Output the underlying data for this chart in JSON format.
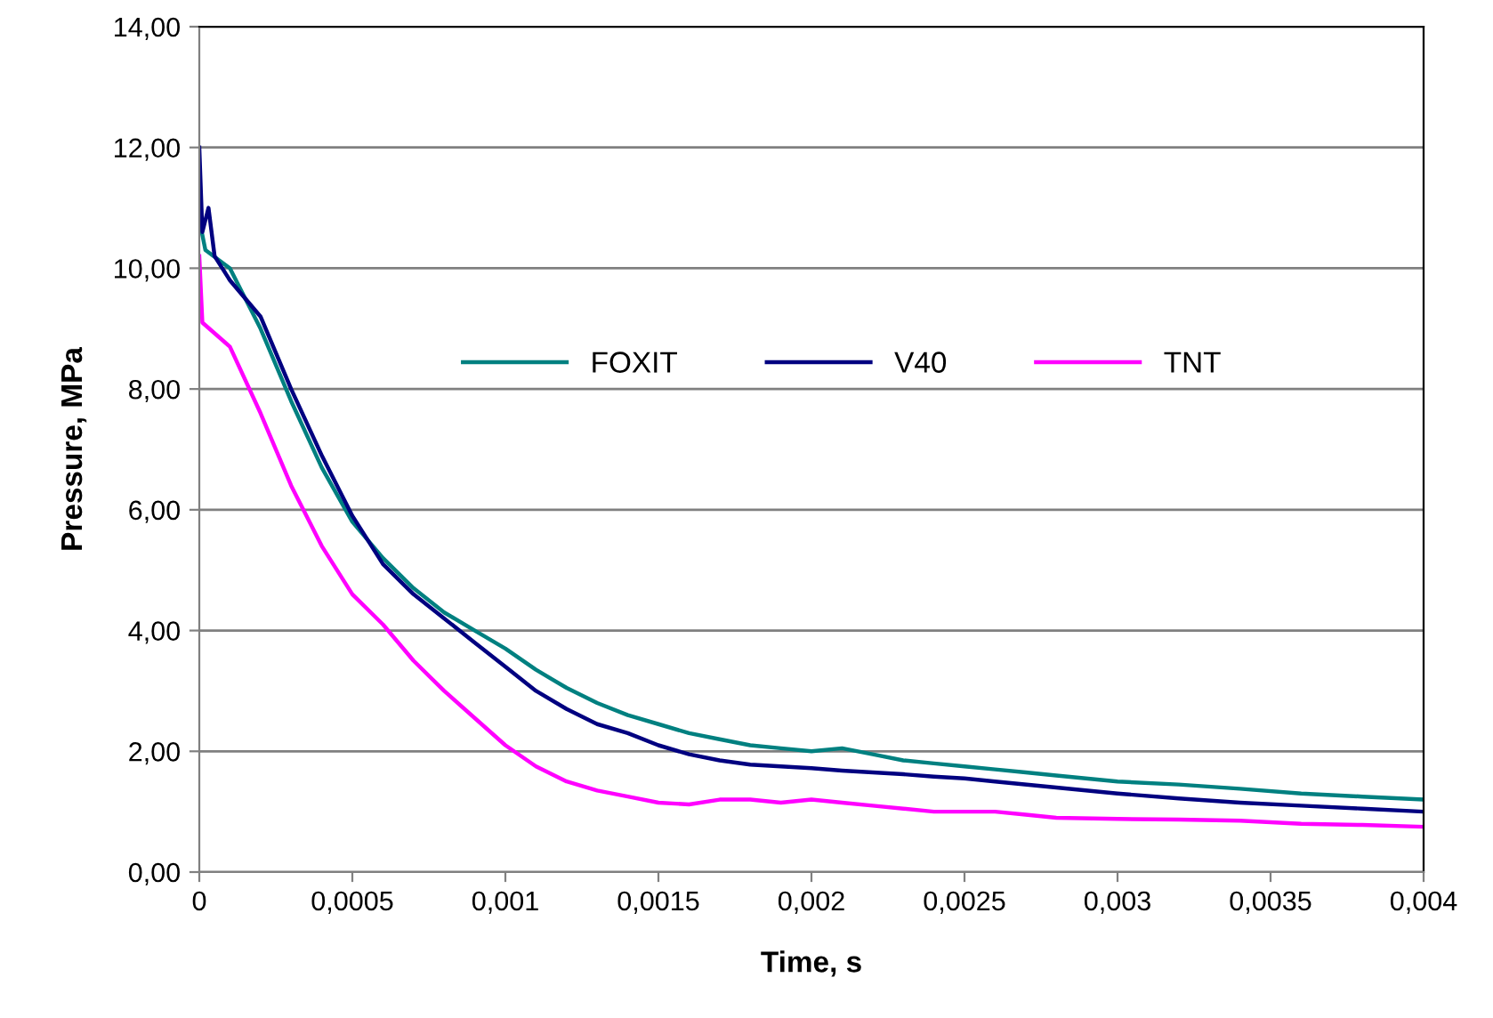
{
  "chart_data": {
    "type": "line",
    "xlabel": "Time, s",
    "ylabel": "Pressure, MPa",
    "xlim": [
      0,
      0.004
    ],
    "ylim": [
      0,
      14
    ],
    "xticks": [
      {
        "value": 0,
        "label": "0"
      },
      {
        "value": 0.0005,
        "label": "0,0005"
      },
      {
        "value": 0.001,
        "label": "0,001"
      },
      {
        "value": 0.0015,
        "label": "0,0015"
      },
      {
        "value": 0.002,
        "label": "0,002"
      },
      {
        "value": 0.0025,
        "label": "0,0025"
      },
      {
        "value": 0.003,
        "label": "0,003"
      },
      {
        "value": 0.0035,
        "label": "0,0035"
      },
      {
        "value": 0.004,
        "label": "0,004"
      }
    ],
    "yticks": [
      {
        "value": 0,
        "label": "0,00"
      },
      {
        "value": 2,
        "label": "2,00"
      },
      {
        "value": 4,
        "label": "4,00"
      },
      {
        "value": 6,
        "label": "6,00"
      },
      {
        "value": 8,
        "label": "8,00"
      },
      {
        "value": 10,
        "label": "10,00"
      },
      {
        "value": 12,
        "label": "12,00"
      },
      {
        "value": 14,
        "label": "14,00"
      }
    ],
    "grid": "y",
    "legend": "center",
    "marker": "none",
    "line_style": "solid",
    "series": [
      {
        "name": "FOXIT",
        "color": "#008080",
        "x": [
          0,
          2e-05,
          0.0001,
          0.0002,
          0.0003,
          0.0004,
          0.0005,
          0.0006,
          0.0007,
          0.0008,
          0.0009,
          0.001,
          0.0011,
          0.0012,
          0.0013,
          0.0014,
          0.0015,
          0.0016,
          0.0017,
          0.0018,
          0.0019,
          0.002,
          0.0021,
          0.0022,
          0.0023,
          0.0024,
          0.0025,
          0.0026,
          0.0027,
          0.0028,
          0.003,
          0.0032,
          0.0034,
          0.0036,
          0.0038,
          0.004
        ],
        "values": [
          10.8,
          10.3,
          10.0,
          9.0,
          7.8,
          6.7,
          5.8,
          5.2,
          4.7,
          4.3,
          4.0,
          3.7,
          3.35,
          3.05,
          2.8,
          2.6,
          2.45,
          2.3,
          2.2,
          2.1,
          2.05,
          2.0,
          2.05,
          1.95,
          1.85,
          1.8,
          1.75,
          1.7,
          1.65,
          1.6,
          1.5,
          1.45,
          1.38,
          1.3,
          1.25,
          1.2
        ]
      },
      {
        "name": "V40",
        "color": "#000080",
        "x": [
          0,
          1e-05,
          3e-05,
          5e-05,
          0.0001,
          0.0002,
          0.0003,
          0.0004,
          0.0005,
          0.0006,
          0.0007,
          0.0008,
          0.0009,
          0.001,
          0.0011,
          0.0012,
          0.0013,
          0.0014,
          0.0015,
          0.0016,
          0.0017,
          0.0018,
          0.0019,
          0.002,
          0.0021,
          0.0022,
          0.0023,
          0.0024,
          0.0025,
          0.0026,
          0.0028,
          0.003,
          0.0032,
          0.0034,
          0.0036,
          0.0038,
          0.004
        ],
        "values": [
          12.0,
          10.6,
          11.0,
          10.2,
          9.8,
          9.2,
          8.0,
          6.9,
          5.9,
          5.1,
          4.6,
          4.2,
          3.8,
          3.4,
          3.0,
          2.7,
          2.45,
          2.3,
          2.1,
          1.95,
          1.85,
          1.78,
          1.75,
          1.72,
          1.68,
          1.65,
          1.62,
          1.58,
          1.55,
          1.5,
          1.4,
          1.3,
          1.22,
          1.15,
          1.1,
          1.05,
          1.0
        ]
      },
      {
        "name": "TNT",
        "color": "#ff00ff",
        "x": [
          0,
          1e-05,
          0.0001,
          0.0002,
          0.0003,
          0.0004,
          0.0005,
          0.0006,
          0.0007,
          0.0008,
          0.0009,
          0.001,
          0.0011,
          0.0012,
          0.0013,
          0.0014,
          0.0015,
          0.0016,
          0.0017,
          0.0018,
          0.0019,
          0.002,
          0.0021,
          0.0022,
          0.0023,
          0.0024,
          0.0025,
          0.0026,
          0.0027,
          0.0028,
          0.003,
          0.0032,
          0.0034,
          0.0036,
          0.0038,
          0.004
        ],
        "values": [
          10.2,
          9.1,
          8.7,
          7.6,
          6.4,
          5.4,
          4.6,
          4.1,
          3.5,
          3.0,
          2.55,
          2.1,
          1.75,
          1.5,
          1.35,
          1.25,
          1.15,
          1.12,
          1.2,
          1.2,
          1.15,
          1.2,
          1.15,
          1.1,
          1.05,
          1.0,
          1.0,
          1.0,
          0.95,
          0.9,
          0.88,
          0.87,
          0.85,
          0.8,
          0.78,
          0.75
        ]
      }
    ]
  }
}
